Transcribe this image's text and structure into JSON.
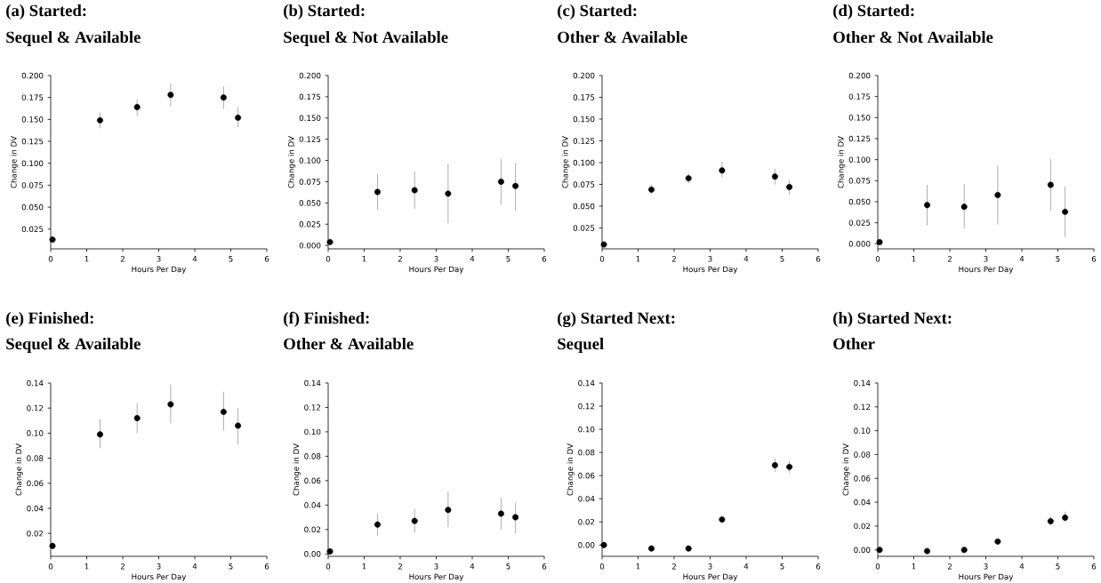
{
  "chart_data": [
    {
      "type": "scatter",
      "title": "(a) Started:",
      "subtitle": "Sequel & Available",
      "xlabel": "Hours Per Day",
      "ylabel": "Change in DV",
      "color": "#000000",
      "x": [
        0.05,
        1.37,
        2.4,
        3.33,
        4.8,
        5.2
      ],
      "values": [
        0.013,
        0.149,
        0.164,
        0.178,
        0.175,
        0.152
      ],
      "errors": [
        null,
        [
          0.14,
          0.158
        ],
        [
          0.154,
          0.173
        ],
        [
          0.165,
          0.191
        ],
        [
          0.162,
          0.188
        ],
        [
          0.141,
          0.164
        ]
      ],
      "xlim": [
        0,
        6
      ],
      "xticks": [
        0,
        1,
        2,
        3,
        4,
        5,
        6
      ],
      "ylim": [
        0.0025,
        0.2
      ],
      "yticks": [
        {
          "value": 0.025,
          "label": "0.025"
        },
        {
          "value": 0.05,
          "label": "0.050"
        },
        {
          "value": 0.075,
          "label": "0.075"
        },
        {
          "value": 0.1,
          "label": "0.100"
        },
        {
          "value": 0.125,
          "label": "0.125"
        },
        {
          "value": 0.15,
          "label": "0.150"
        },
        {
          "value": 0.175,
          "label": "0.175"
        },
        {
          "value": 0.2,
          "label": "0.200"
        }
      ]
    },
    {
      "type": "scatter",
      "title": "(b) Started:",
      "subtitle": "Sequel & Not Available",
      "xlabel": "Hours Per Day",
      "ylabel": "Change in DV",
      "color": "#000000",
      "x": [
        0.05,
        1.37,
        2.4,
        3.33,
        4.8,
        5.2
      ],
      "values": [
        0.004,
        0.063,
        0.065,
        0.061,
        0.075,
        0.07
      ],
      "errors": [
        null,
        [
          0.042,
          0.084
        ],
        [
          0.043,
          0.087
        ],
        [
          0.026,
          0.096
        ],
        [
          0.048,
          0.102
        ],
        [
          0.041,
          0.097
        ]
      ],
      "xlim": [
        0,
        6
      ],
      "xticks": [
        0,
        1,
        2,
        3,
        4,
        5,
        6
      ],
      "ylim": [
        -0.004,
        0.2
      ],
      "yticks": [
        {
          "value": 0,
          "label": "0.000"
        },
        {
          "value": 0.025,
          "label": "0.025"
        },
        {
          "value": 0.05,
          "label": "0.050"
        },
        {
          "value": 0.075,
          "label": "0.075"
        },
        {
          "value": 0.1,
          "label": "0.100"
        },
        {
          "value": 0.125,
          "label": "0.125"
        },
        {
          "value": 0.15,
          "label": "0.150"
        },
        {
          "value": 0.175,
          "label": "0.175"
        },
        {
          "value": 0.2,
          "label": "0.200"
        }
      ]
    },
    {
      "type": "scatter",
      "title": "(c) Started:",
      "subtitle": "Other & Available",
      "xlabel": "Hours Per Day",
      "ylabel": "Change in DV",
      "color": "#000000",
      "x": [
        0.05,
        1.37,
        2.4,
        3.33,
        4.8,
        5.2
      ],
      "values": [
        0.006,
        0.069,
        0.082,
        0.091,
        0.084,
        0.072
      ],
      "errors": [
        null,
        [
          0.064,
          0.075
        ],
        [
          0.076,
          0.088
        ],
        [
          0.083,
          0.101
        ],
        [
          0.075,
          0.093
        ],
        [
          0.063,
          0.08
        ]
      ],
      "xlim": [
        0,
        6
      ],
      "xticks": [
        0,
        1,
        2,
        3,
        4,
        5,
        6
      ],
      "ylim": [
        0.001,
        0.2
      ],
      "yticks": [
        {
          "value": 0.025,
          "label": "0.025"
        },
        {
          "value": 0.05,
          "label": "0.050"
        },
        {
          "value": 0.075,
          "label": "0.075"
        },
        {
          "value": 0.1,
          "label": "0.100"
        },
        {
          "value": 0.125,
          "label": "0.125"
        },
        {
          "value": 0.15,
          "label": "0.150"
        },
        {
          "value": 0.175,
          "label": "0.175"
        },
        {
          "value": 0.2,
          "label": "0.200"
        }
      ]
    },
    {
      "type": "scatter",
      "title": "(d) Started:",
      "subtitle": "Other & Not Available",
      "xlabel": "Hours Per Day",
      "ylabel": "Change in DV",
      "color": "#000000",
      "x": [
        0.05,
        1.37,
        2.4,
        3.33,
        4.8,
        5.2
      ],
      "values": [
        0.002,
        0.046,
        0.044,
        0.058,
        0.07,
        0.038
      ],
      "errors": [
        null,
        [
          0.022,
          0.07
        ],
        [
          0.018,
          0.071
        ],
        [
          0.023,
          0.093
        ],
        [
          0.039,
          0.101
        ],
        [
          0.008,
          0.068
        ]
      ],
      "xlim": [
        0,
        6
      ],
      "xticks": [
        0,
        1,
        2,
        3,
        4,
        5,
        6
      ],
      "ylim": [
        -0.006,
        0.2
      ],
      "yticks": [
        {
          "value": 0,
          "label": "0.000"
        },
        {
          "value": 0.025,
          "label": "0.025"
        },
        {
          "value": 0.05,
          "label": "0.050"
        },
        {
          "value": 0.075,
          "label": "0.075"
        },
        {
          "value": 0.1,
          "label": "0.100"
        },
        {
          "value": 0.125,
          "label": "0.125"
        },
        {
          "value": 0.15,
          "label": "0.150"
        },
        {
          "value": 0.175,
          "label": "0.175"
        },
        {
          "value": 0.2,
          "label": "0.200"
        }
      ]
    },
    {
      "type": "scatter",
      "title": "(e) Finished:",
      "subtitle": "Sequel & Available",
      "xlabel": "Hours Per Day",
      "ylabel": "Change in DV",
      "color": "#000000",
      "x": [
        0.05,
        1.37,
        2.4,
        3.33,
        4.8,
        5.2
      ],
      "values": [
        0.01,
        0.099,
        0.112,
        0.123,
        0.117,
        0.106
      ],
      "errors": [
        null,
        [
          0.088,
          0.111
        ],
        [
          0.1,
          0.124
        ],
        [
          0.108,
          0.139
        ],
        [
          0.102,
          0.133
        ],
        [
          0.091,
          0.12
        ]
      ],
      "xlim": [
        0,
        6
      ],
      "xticks": [
        0,
        1,
        2,
        3,
        4,
        5,
        6
      ],
      "ylim": [
        0.0017,
        0.14
      ],
      "yticks": [
        {
          "value": 0.02,
          "label": "0.02"
        },
        {
          "value": 0.04,
          "label": "0.04"
        },
        {
          "value": 0.06,
          "label": "0.06"
        },
        {
          "value": 0.08,
          "label": "0.08"
        },
        {
          "value": 0.1,
          "label": "0.10"
        },
        {
          "value": 0.12,
          "label": "0.12"
        },
        {
          "value": 0.14,
          "label": "0.14"
        }
      ]
    },
    {
      "type": "scatter",
      "title": "(f) Finished:",
      "subtitle": "Other & Available",
      "xlabel": "Hours Per Day",
      "ylabel": "Change in DV",
      "color": "#000000",
      "x": [
        0.05,
        1.37,
        2.4,
        3.33,
        4.8,
        5.2
      ],
      "values": [
        0.002,
        0.024,
        0.027,
        0.036,
        0.033,
        0.03
      ],
      "errors": [
        null,
        [
          0.015,
          0.033
        ],
        [
          0.017,
          0.037
        ],
        [
          0.022,
          0.051
        ],
        [
          0.02,
          0.046
        ],
        [
          0.017,
          0.042
        ]
      ],
      "xlim": [
        0,
        6
      ],
      "xticks": [
        0,
        1,
        2,
        3,
        4,
        5,
        6
      ],
      "ylim": [
        -0.002,
        0.14
      ],
      "yticks": [
        {
          "value": 0,
          "label": "0.00"
        },
        {
          "value": 0.02,
          "label": "0.02"
        },
        {
          "value": 0.04,
          "label": "0.04"
        },
        {
          "value": 0.06,
          "label": "0.06"
        },
        {
          "value": 0.08,
          "label": "0.08"
        },
        {
          "value": 0.1,
          "label": "0.10"
        },
        {
          "value": 0.12,
          "label": "0.12"
        },
        {
          "value": 0.14,
          "label": "0.14"
        }
      ]
    },
    {
      "type": "scatter",
      "title": "(g) Started Next:",
      "subtitle": "Sequel",
      "xlabel": "Hours Per Day",
      "ylabel": "Change in DV",
      "color": "#000000",
      "x": [
        0.05,
        1.37,
        2.4,
        3.33,
        4.8,
        5.2
      ],
      "values": [
        0.0,
        -0.003,
        -0.003,
        0.022,
        0.069,
        0.0675
      ],
      "errors": [
        null,
        null,
        null,
        [
          0.019,
          0.025
        ],
        [
          0.063,
          0.075
        ],
        [
          0.062,
          0.073
        ]
      ],
      "xlim": [
        0,
        6
      ],
      "xticks": [
        0,
        1,
        2,
        3,
        4,
        5,
        6
      ],
      "ylim": [
        -0.0098,
        0.14
      ],
      "yticks": [
        {
          "value": 0,
          "label": "0.00"
        },
        {
          "value": 0.02,
          "label": "0.02"
        },
        {
          "value": 0.04,
          "label": "0.04"
        },
        {
          "value": 0.06,
          "label": "0.06"
        },
        {
          "value": 0.08,
          "label": "0.08"
        },
        {
          "value": 0.1,
          "label": "0.10"
        },
        {
          "value": 0.12,
          "label": "0.12"
        },
        {
          "value": 0.14,
          "label": "0.14"
        }
      ]
    },
    {
      "type": "scatter",
      "title": "(h) Started Next:",
      "subtitle": "Other",
      "xlabel": "Hours Per Day",
      "ylabel": "Change in DV",
      "color": "#000000",
      "x": [
        0.05,
        1.37,
        2.4,
        3.33,
        4.8,
        5.2
      ],
      "values": [
        0.0,
        -0.001,
        0.0,
        0.007,
        0.024,
        0.027
      ],
      "errors": [
        null,
        null,
        null,
        null,
        [
          0.021,
          0.028
        ],
        [
          0.024,
          0.032
        ]
      ],
      "xlim": [
        0,
        6
      ],
      "xticks": [
        0,
        1,
        2,
        3,
        4,
        5,
        6
      ],
      "ylim": [
        -0.0054,
        0.14
      ],
      "yticks": [
        {
          "value": 0,
          "label": "0.00"
        },
        {
          "value": 0.02,
          "label": "0.02"
        },
        {
          "value": 0.04,
          "label": "0.04"
        },
        {
          "value": 0.06,
          "label": "0.06"
        },
        {
          "value": 0.08,
          "label": "0.08"
        },
        {
          "value": 0.1,
          "label": "0.10"
        },
        {
          "value": 0.12,
          "label": "0.12"
        },
        {
          "value": 0.14,
          "label": "0.14"
        }
      ]
    }
  ]
}
